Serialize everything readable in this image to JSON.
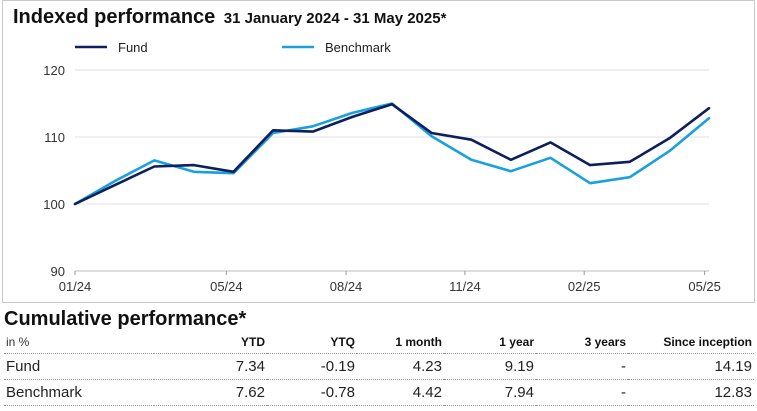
{
  "chart_data": {
    "type": "line",
    "title": "Indexed performance",
    "subtitle": "31 January 2024 - 31 May 2025*",
    "ylim": [
      90,
      120
    ],
    "yticks": [
      90,
      100,
      110,
      120
    ],
    "xlim": [
      0,
      16
    ],
    "xticks": [
      {
        "x": 0,
        "label": "01/24"
      },
      {
        "x": 3.82,
        "label": "05/24"
      },
      {
        "x": 6.84,
        "label": "08/24"
      },
      {
        "x": 9.84,
        "label": "11/24"
      },
      {
        "x": 12.85,
        "label": "02/25"
      },
      {
        "x": 15.89,
        "label": "05/25"
      }
    ],
    "grid": "horizontal",
    "legend_position": "top",
    "x": [
      0,
      1,
      2,
      3,
      4,
      5,
      6,
      7,
      8,
      9,
      10,
      11,
      12,
      13,
      14,
      15,
      16
    ],
    "series": [
      {
        "name": "Fund",
        "color": "#0d1f5c",
        "values": [
          100,
          102.8,
          105.6,
          105.8,
          104.8,
          111.0,
          110.8,
          113.0,
          114.9,
          110.6,
          109.6,
          106.6,
          109.2,
          105.8,
          106.3,
          109.8,
          114.3
        ]
      },
      {
        "name": "Benchmark",
        "color": "#1aa0dc",
        "values": [
          100,
          103.4,
          106.5,
          104.8,
          104.6,
          110.6,
          111.6,
          113.6,
          115.0,
          110.1,
          106.6,
          104.9,
          106.9,
          103.1,
          104.0,
          107.9,
          112.8
        ]
      }
    ]
  },
  "cumulative": {
    "title": "Cumulative performance*",
    "unit_label": "in %",
    "columns": [
      "YTD",
      "YTQ",
      "1 month",
      "1 year",
      "3 years",
      "Since inception"
    ],
    "rows": [
      {
        "label": "Fund",
        "values": [
          "7.34",
          "-0.19",
          "4.23",
          "9.19",
          "-",
          "14.19"
        ]
      },
      {
        "label": "Benchmark",
        "values": [
          "7.62",
          "-0.78",
          "4.42",
          "7.94",
          "-",
          "12.83"
        ]
      }
    ]
  }
}
